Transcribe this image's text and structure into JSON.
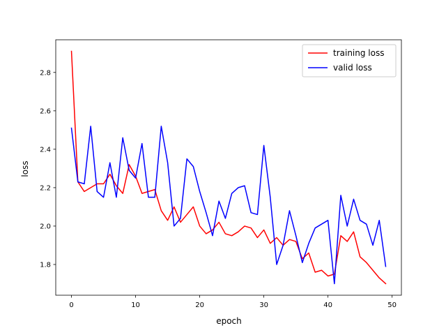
{
  "chart_data": {
    "type": "line",
    "xlabel": "epoch",
    "ylabel": "loss",
    "xlim": [
      -2.45,
      51.45
    ],
    "ylim": [
      1.64,
      2.97
    ],
    "x_ticks": [
      0,
      10,
      20,
      30,
      40,
      50
    ],
    "y_ticks": [
      1.8,
      2.0,
      2.2,
      2.4,
      2.6,
      2.8
    ],
    "x_tick_labels": [
      "0",
      "10",
      "20",
      "30",
      "40",
      "50"
    ],
    "y_tick_labels": [
      "1.8",
      "2.0",
      "2.2",
      "2.4",
      "2.6",
      "2.8"
    ],
    "grid": false,
    "legend_position": "top-right",
    "x": [
      0,
      1,
      2,
      3,
      4,
      5,
      6,
      7,
      8,
      9,
      10,
      11,
      12,
      13,
      14,
      15,
      16,
      17,
      18,
      19,
      20,
      21,
      22,
      23,
      24,
      25,
      26,
      27,
      28,
      29,
      30,
      31,
      32,
      33,
      34,
      35,
      36,
      37,
      38,
      39,
      40,
      41,
      42,
      43,
      44,
      45,
      46,
      47,
      48,
      49
    ],
    "series": [
      {
        "name": "training loss",
        "color": "#ff0000",
        "values": [
          2.91,
          2.23,
          2.18,
          2.2,
          2.22,
          2.22,
          2.27,
          2.21,
          2.17,
          2.32,
          2.26,
          2.17,
          2.18,
          2.19,
          2.08,
          2.03,
          2.1,
          2.02,
          2.06,
          2.1,
          2.0,
          1.96,
          1.98,
          2.02,
          1.96,
          1.95,
          1.97,
          2.0,
          1.99,
          1.94,
          1.98,
          1.91,
          1.94,
          1.9,
          1.93,
          1.92,
          1.83,
          1.86,
          1.76,
          1.77,
          1.74,
          1.75,
          1.95,
          1.92,
          1.97,
          1.84,
          1.81,
          1.77,
          1.73,
          1.7
        ]
      },
      {
        "name": "valid loss",
        "color": "#0000ff",
        "values": [
          2.51,
          2.23,
          2.22,
          2.52,
          2.18,
          2.15,
          2.33,
          2.15,
          2.46,
          2.29,
          2.25,
          2.43,
          2.15,
          2.15,
          2.52,
          2.33,
          2.0,
          2.04,
          2.35,
          2.31,
          2.18,
          2.07,
          1.95,
          2.13,
          2.04,
          2.17,
          2.2,
          2.21,
          2.07,
          2.06,
          2.42,
          2.15,
          1.8,
          1.9,
          2.08,
          1.95,
          1.81,
          1.91,
          1.99,
          2.01,
          2.03,
          1.7,
          2.16,
          2.0,
          2.14,
          2.03,
          2.01,
          1.9,
          2.03,
          1.79
        ]
      }
    ]
  }
}
